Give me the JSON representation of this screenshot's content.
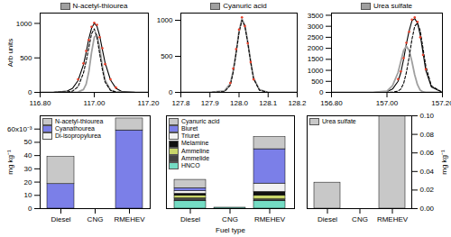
{
  "chart_data": [
    {
      "type": "line",
      "ylabel": "Arb units",
      "x": [
        116.8,
        116.85,
        116.9,
        116.92,
        116.94,
        116.96,
        116.97,
        116.98,
        116.99,
        117.0,
        117.01,
        117.02,
        117.03,
        117.04,
        117.06,
        117.08,
        117.1,
        117.15,
        117.2
      ],
      "xlim": [
        116.8,
        117.2
      ],
      "xticks": [
        {
          "value": 116.8,
          "label": "116.80"
        },
        {
          "value": 117,
          "label": "117.00"
        },
        {
          "value": 117.2,
          "label": "117.20"
        }
      ],
      "ylim": [
        0,
        1150
      ],
      "yticks": [
        0,
        500,
        1000
      ],
      "series": [
        {
          "color": "#000000",
          "line_style": "solid",
          "values": [
            0,
            2,
            20,
            60,
            170,
            400,
            580,
            780,
            930,
            1000,
            960,
            820,
            620,
            430,
            180,
            60,
            15,
            2,
            0
          ]
        },
        {
          "name": "N-acetyl-thiourea",
          "color": "#a0a0a0",
          "line_style": "solid",
          "values": [
            0,
            0,
            0,
            0,
            5,
            40,
            120,
            300,
            580,
            800,
            830,
            650,
            380,
            180,
            30,
            5,
            0,
            0,
            0
          ]
        },
        {
          "color": "#000000",
          "line_style": "dashed",
          "values": [
            0,
            0,
            5,
            20,
            80,
            280,
            450,
            650,
            850,
            920,
            800,
            560,
            330,
            150,
            30,
            5,
            0,
            0,
            0
          ]
        },
        {
          "color": "#e8402a",
          "line_style": "none",
          "marker": "circle",
          "values": [
            null,
            null,
            null,
            null,
            190,
            420,
            600,
            760,
            950,
            1010,
            980,
            800,
            640,
            410,
            190,
            70,
            null,
            null,
            null
          ]
        }
      ]
    },
    {
      "type": "line",
      "x": [
        127.8,
        127.9,
        127.95,
        127.97,
        127.98,
        127.99,
        128.0,
        128.01,
        128.02,
        128.03,
        128.04,
        128.05,
        128.07,
        128.1,
        128.2
      ],
      "xlim": [
        127.8,
        128.2
      ],
      "xticks": [
        127.8,
        127.9,
        {
          "value": 128,
          "label": "128.0"
        },
        128.1,
        128.2
      ],
      "ylim": [
        0,
        1100
      ],
      "yticks": [
        0,
        500,
        1000
      ],
      "series": [
        {
          "name": "Cyanuric acid",
          "color": "#a0a0a0",
          "line_style": "solid",
          "values": [
            0,
            0,
            20,
            120,
            300,
            560,
            850,
            1020,
            930,
            700,
            430,
            200,
            40,
            0,
            0
          ]
        },
        {
          "color": "#000000",
          "line_style": "dashed",
          "values": [
            0,
            0,
            10,
            100,
            280,
            540,
            830,
            1000,
            920,
            690,
            420,
            190,
            30,
            0,
            0
          ]
        },
        {
          "color": "#e8402a",
          "line_style": "none",
          "marker": "circle",
          "values": [
            null,
            null,
            null,
            130,
            330,
            600,
            870,
            1040,
            920,
            680,
            420,
            180,
            null,
            null,
            null
          ]
        }
      ]
    },
    {
      "type": "line",
      "x": [
        156.8,
        156.95,
        157.0,
        157.02,
        157.04,
        157.05,
        157.06,
        157.07,
        157.08,
        157.09,
        157.1,
        157.11,
        157.12,
        157.13,
        157.14,
        157.16,
        157.2
      ],
      "xlim": [
        156.8,
        157.2
      ],
      "xticks": [
        {
          "value": 156.8,
          "label": "156.80"
        },
        {
          "value": 157,
          "label": "157.00"
        },
        {
          "value": 157.2,
          "label": "157.20"
        }
      ],
      "ylim": [
        0,
        3600
      ],
      "yticks": [
        0,
        500,
        1000,
        1500,
        2000,
        2500,
        3000,
        3500
      ],
      "series": [
        {
          "color": "#000000",
          "line_style": "solid",
          "values": [
            0,
            0,
            30,
            150,
            500,
            900,
            1500,
            2200,
            2800,
            3250,
            3350,
            3150,
            2600,
            1800,
            1000,
            250,
            0
          ]
        },
        {
          "name": "Urea sulfate",
          "color": "#a0a0a0",
          "line_style": "solid",
          "values": [
            0,
            0,
            60,
            300,
            900,
            1400,
            1900,
            2100,
            1900,
            1400,
            800,
            350,
            100,
            20,
            0,
            0,
            0
          ]
        },
        {
          "color": "#000000",
          "line_style": "dashed",
          "values": [
            0,
            0,
            0,
            10,
            60,
            150,
            400,
            900,
            1600,
            2400,
            3000,
            3150,
            2800,
            2000,
            1200,
            300,
            0
          ]
        },
        {
          "color": "#e8402a",
          "line_style": "none",
          "marker": "circle",
          "values": [
            null,
            null,
            null,
            null,
            600,
            950,
            1550,
            2250,
            2750,
            3300,
            3400,
            3200,
            2500,
            1700,
            1050,
            null,
            null
          ]
        }
      ]
    },
    {
      "type": "bar",
      "stacked": true,
      "ylabel": "mg kg⁻¹",
      "categories": [
        "Diesel",
        "CNG",
        "RMEHEV"
      ],
      "ylim": [
        0,
        0.07
      ],
      "yticks": [
        0,
        {
          "value": 0.01,
          "label": "10"
        },
        {
          "value": 0.02,
          "label": "20"
        },
        {
          "value": 0.03,
          "label": "30"
        },
        {
          "value": 0.04,
          "label": "40"
        },
        {
          "value": 0.05,
          "label": "50"
        },
        {
          "value": 0.06,
          "label": "60x10⁻³"
        }
      ],
      "series": [
        {
          "name": "N-acetyl-thiourea",
          "color": "#c8c8c8",
          "values": [
            0.0205,
            0,
            0.009
          ]
        },
        {
          "name": "Cyanathourea",
          "color": "#7b7fe8",
          "values": [
            0.0185,
            0,
            0.059
          ]
        },
        {
          "name": "Di-isopropylurea",
          "color": "#f2f2f2",
          "values": [
            0,
            0,
            0
          ]
        }
      ]
    },
    {
      "type": "bar",
      "stacked": true,
      "xlabel": "Fuel type",
      "tick_labels": "x",
      "categories": [
        "Diesel",
        "CNG",
        "RMEHEV"
      ],
      "ylim": [
        0,
        1
      ],
      "series": [
        {
          "name": "Cyanuric acid",
          "color": "#c8c8c8",
          "values": [
            0.09,
            0,
            0.13
          ]
        },
        {
          "name": "Biuret",
          "color": "#7b7fe8",
          "values": [
            0.03,
            0,
            0.37
          ]
        },
        {
          "name": "Triuret",
          "color": "#f2f2f2",
          "values": [
            0.03,
            0,
            0.09
          ]
        },
        {
          "name": "Melamine",
          "color": "#111111",
          "values": [
            0.02,
            0,
            0.04
          ]
        },
        {
          "name": "Ammeline",
          "color": "#c9d66b",
          "values": [
            0.03,
            0,
            0.04
          ]
        },
        {
          "name": "Ammelide",
          "color": "#444444",
          "values": [
            0.03,
            0,
            0.02
          ]
        },
        {
          "name": "HNCO",
          "color": "#74dcc4",
          "values": [
            0.08,
            0.01,
            0.08
          ]
        }
      ]
    },
    {
      "type": "bar",
      "stacked": true,
      "ylabel": "mg kg⁻¹",
      "categories": [
        "Diesel",
        "CNG",
        "RMEHEV"
      ],
      "ylim": [
        0,
        0.1
      ],
      "yticks": [
        {
          "value": 0,
          "label": "0.00"
        },
        {
          "value": 0.02,
          "label": "0.02"
        },
        {
          "value": 0.04,
          "label": "0.04"
        },
        {
          "value": 0.06,
          "label": "0.06"
        },
        {
          "value": 0.08,
          "label": "0.08"
        },
        {
          "value": 0.1,
          "label": "0.10"
        }
      ],
      "series": [
        {
          "name": "Urea sulfate",
          "color": "#c8c8c8",
          "values": [
            0.028,
            0,
            0.1
          ]
        }
      ]
    }
  ]
}
